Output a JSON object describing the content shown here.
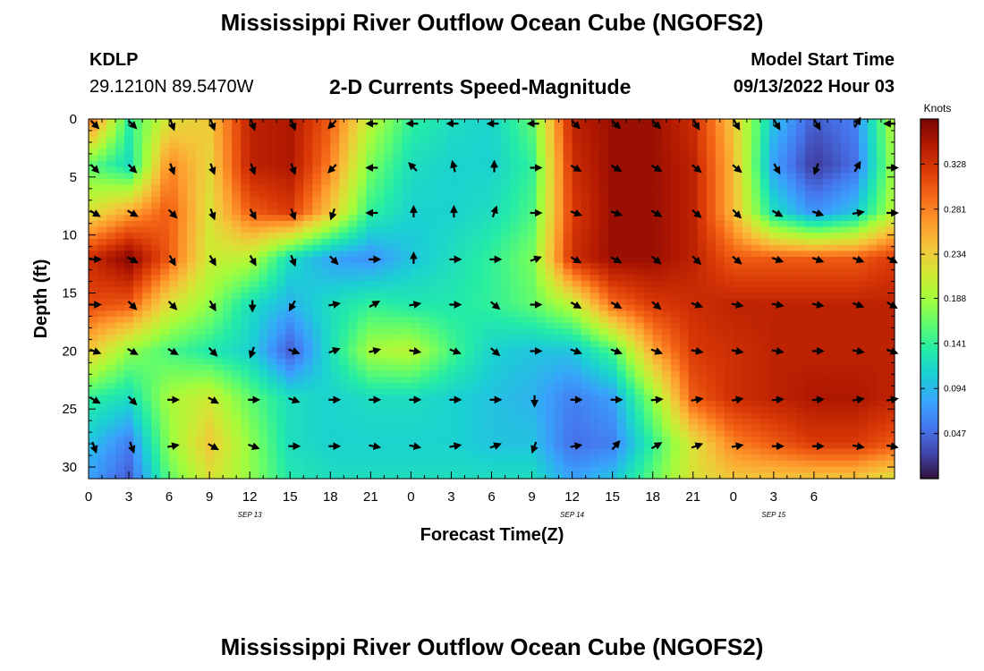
{
  "header": {
    "title": "Mississippi River Outflow Ocean Cube (NGOFS2)",
    "station_id": "KDLP",
    "station_coords": "29.1210N  89.5470W",
    "subtitle": "2-D Currents Speed-Magnitude",
    "model_start_label": "Model Start Time",
    "model_start_value": "09/13/2022 Hour 03"
  },
  "footer": {
    "title": "Mississippi River Outflow Ocean Cube (NGOFS2)"
  },
  "chart_data": {
    "type": "heatmap",
    "title": "2-D Currents Speed-Magnitude",
    "xlabel": "Forecast Time(Z)",
    "ylabel": "Depth (ft)",
    "x_hours_range": [
      0,
      60
    ],
    "y_range": [
      0,
      31
    ],
    "y_inverted": true,
    "x_tick_labels": [
      "0",
      "3",
      "6",
      "9",
      "12",
      "15",
      "18",
      "21",
      "0",
      "3",
      "6",
      "9",
      "12",
      "15",
      "18",
      "21",
      "0",
      "3",
      "6"
    ],
    "y_tick_labels": [
      "0",
      "5",
      "10",
      "15",
      "20",
      "25",
      "30"
    ],
    "y_tick_values": [
      0,
      5,
      10,
      15,
      20,
      25,
      30
    ],
    "date_labels": [
      {
        "text": "SEP 13",
        "hour": 12
      },
      {
        "text": "SEP 14",
        "hour": 36
      },
      {
        "text": "SEP 15",
        "hour": 51
      }
    ],
    "colorbar": {
      "title": "Knots",
      "min": 0.0,
      "max": 0.375,
      "ticks": [
        "0.328",
        "0.281",
        "0.234",
        "0.188",
        "0.141",
        "0.094",
        "0.047"
      ],
      "tick_values": [
        0.328,
        0.281,
        0.234,
        0.188,
        0.141,
        0.094,
        0.047
      ]
    },
    "speed_depths": [
      0,
      4,
      8,
      12,
      16,
      20,
      24,
      28,
      31
    ],
    "speed_hours": [
      0,
      3,
      6,
      9,
      12,
      15,
      18,
      21,
      24,
      27,
      30,
      33,
      36,
      39,
      42,
      45,
      48,
      51,
      54,
      57,
      60
    ],
    "speed_knots": [
      [
        0.3,
        0.14,
        0.22,
        0.24,
        0.34,
        0.35,
        0.3,
        0.2,
        0.14,
        0.12,
        0.11,
        0.16,
        0.34,
        0.36,
        0.36,
        0.33,
        0.24,
        0.1,
        0.04,
        0.06,
        0.2
      ],
      [
        0.16,
        0.12,
        0.28,
        0.23,
        0.34,
        0.35,
        0.28,
        0.17,
        0.12,
        0.11,
        0.11,
        0.14,
        0.33,
        0.36,
        0.36,
        0.34,
        0.25,
        0.08,
        0.02,
        0.05,
        0.19
      ],
      [
        0.22,
        0.26,
        0.3,
        0.22,
        0.3,
        0.32,
        0.24,
        0.14,
        0.11,
        0.11,
        0.12,
        0.15,
        0.32,
        0.36,
        0.36,
        0.34,
        0.25,
        0.12,
        0.07,
        0.1,
        0.2
      ],
      [
        0.33,
        0.37,
        0.3,
        0.21,
        0.2,
        0.12,
        0.08,
        0.07,
        0.1,
        0.12,
        0.14,
        0.17,
        0.33,
        0.36,
        0.36,
        0.34,
        0.3,
        0.3,
        0.3,
        0.3,
        0.32
      ],
      [
        0.31,
        0.3,
        0.22,
        0.18,
        0.12,
        0.09,
        0.12,
        0.14,
        0.13,
        0.13,
        0.14,
        0.16,
        0.2,
        0.29,
        0.32,
        0.33,
        0.34,
        0.34,
        0.34,
        0.34,
        0.34
      ],
      [
        0.24,
        0.18,
        0.15,
        0.13,
        0.11,
        0.04,
        0.12,
        0.19,
        0.2,
        0.15,
        0.11,
        0.1,
        0.1,
        0.15,
        0.26,
        0.32,
        0.33,
        0.34,
        0.34,
        0.34,
        0.34
      ],
      [
        0.14,
        0.12,
        0.19,
        0.21,
        0.16,
        0.12,
        0.11,
        0.12,
        0.12,
        0.11,
        0.1,
        0.09,
        0.06,
        0.08,
        0.18,
        0.3,
        0.33,
        0.34,
        0.35,
        0.35,
        0.34
      ],
      [
        0.1,
        0.06,
        0.18,
        0.24,
        0.18,
        0.12,
        0.11,
        0.11,
        0.11,
        0.11,
        0.1,
        0.1,
        0.05,
        0.06,
        0.14,
        0.22,
        0.28,
        0.3,
        0.32,
        0.32,
        0.3
      ],
      [
        0.08,
        0.04,
        0.16,
        0.22,
        0.18,
        0.13,
        0.12,
        0.12,
        0.12,
        0.12,
        0.12,
        0.12,
        0.08,
        0.1,
        0.16,
        0.22,
        0.24,
        0.24,
        0.24,
        0.24,
        0.22
      ]
    ],
    "arrow_hours": [
      0,
      3,
      6,
      9,
      12,
      15,
      18,
      21,
      24,
      27,
      30,
      33,
      36,
      39,
      42,
      45,
      48,
      51,
      54,
      57,
      60
    ],
    "arrow_depths": [
      0.4,
      4.2,
      8.1,
      12.1,
      16.0,
      20.0,
      24.2,
      28.2
    ],
    "arrow_directions_deg": [
      [
        135,
        135,
        160,
        160,
        160,
        160,
        225,
        270,
        270,
        270,
        270,
        270,
        135,
        135,
        135,
        150,
        150,
        150,
        150,
        30,
        270
      ],
      [
        135,
        135,
        160,
        160,
        160,
        160,
        225,
        270,
        315,
        345,
        360,
        90,
        120,
        120,
        120,
        130,
        130,
        150,
        200,
        30,
        90
      ],
      [
        120,
        120,
        135,
        160,
        150,
        160,
        200,
        270,
        360,
        360,
        20,
        90,
        110,
        110,
        120,
        130,
        135,
        120,
        110,
        80,
        90
      ],
      [
        90,
        120,
        150,
        150,
        150,
        160,
        135,
        90,
        360,
        90,
        90,
        70,
        120,
        120,
        130,
        135,
        130,
        110,
        110,
        110,
        120
      ],
      [
        90,
        135,
        135,
        150,
        180,
        210,
        80,
        60,
        80,
        90,
        130,
        90,
        120,
        120,
        130,
        110,
        100,
        100,
        100,
        110,
        120
      ],
      [
        110,
        120,
        120,
        135,
        200,
        110,
        70,
        75,
        100,
        110,
        130,
        90,
        110,
        110,
        110,
        100,
        100,
        100,
        90,
        100,
        110
      ],
      [
        120,
        135,
        90,
        120,
        90,
        110,
        90,
        90,
        90,
        90,
        90,
        180,
        90,
        90,
        85,
        80,
        80,
        85,
        85,
        80,
        80
      ],
      [
        160,
        160,
        80,
        120,
        110,
        90,
        90,
        100,
        100,
        80,
        70,
        200,
        80,
        40,
        60,
        70,
        80,
        90,
        90,
        100,
        100
      ]
    ]
  }
}
